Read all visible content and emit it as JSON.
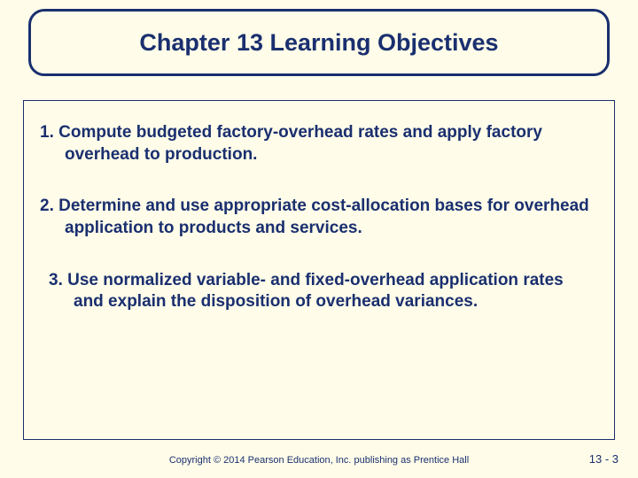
{
  "colors": {
    "background": "#fffde9",
    "primary": "#1a2f6f",
    "border": "#1a2f6f"
  },
  "typography": {
    "title_fontsize": 27,
    "body_fontsize": 19,
    "footer_fontsize": 11,
    "pagenum_fontsize": 13,
    "font_family": "Verdana"
  },
  "title": "Chapter 13 Learning Objectives",
  "objectives": {
    "item1": "1. Compute budgeted factory-overhead rates and apply factory overhead to production.",
    "item2": "2. Determine and use appropriate cost-allocation bases for overhead application to products and services.",
    "item3": "3. Use normalized variable- and fixed-overhead application rates and explain the disposition of overhead variances."
  },
  "footer": {
    "copyright": "Copyright © 2014 Pearson Education, Inc. publishing as Prentice Hall",
    "page": "13 -  3"
  }
}
